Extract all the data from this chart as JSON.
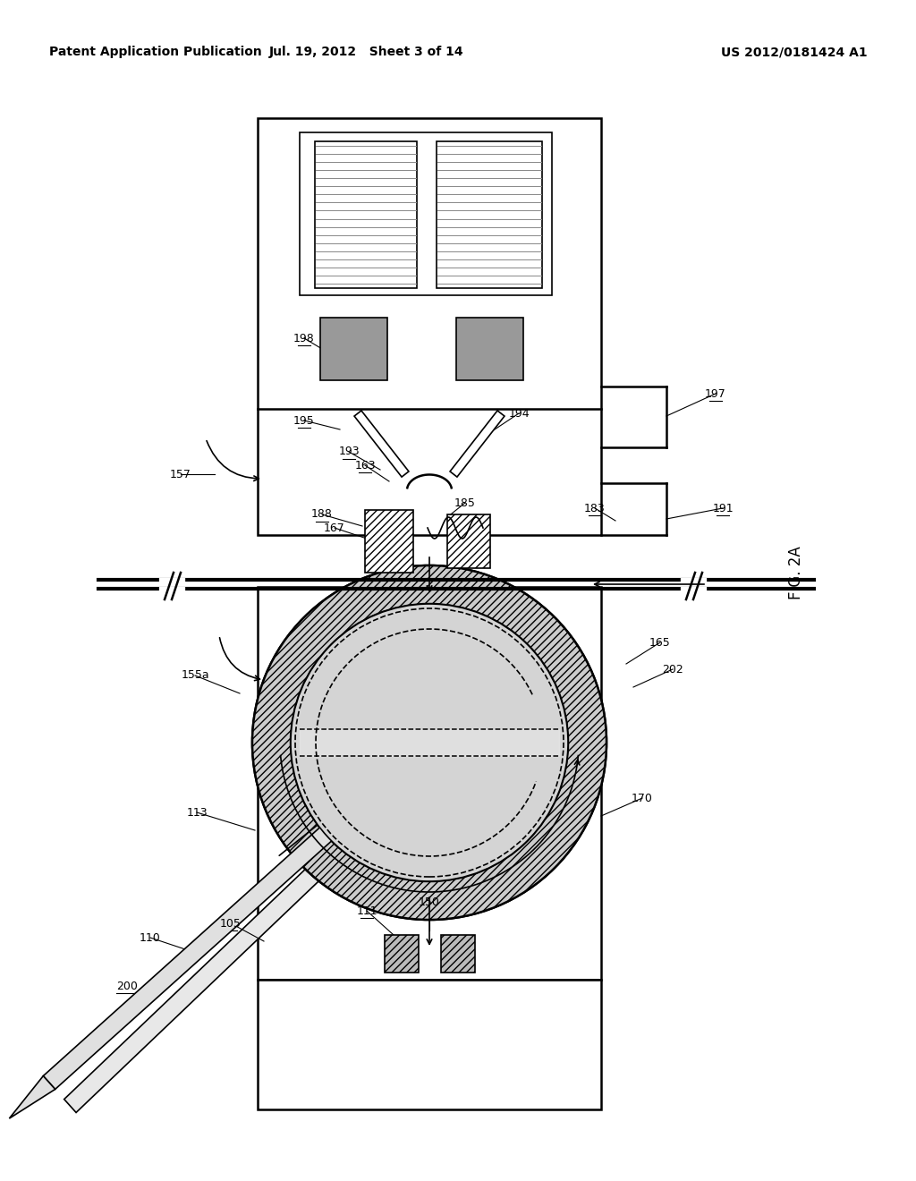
{
  "title_left": "Patent Application Publication",
  "title_mid": "Jul. 19, 2012   Sheet 3 of 14",
  "title_right": "US 2012/0181424 A1",
  "fig_label": "FIG. 2A",
  "bg_color": "#ffffff",
  "line_color": "#000000",
  "gray_fill": "#aaaaaa",
  "hatch_gray": "#bbbbbb",
  "dot_fill": "#d8d8d8"
}
